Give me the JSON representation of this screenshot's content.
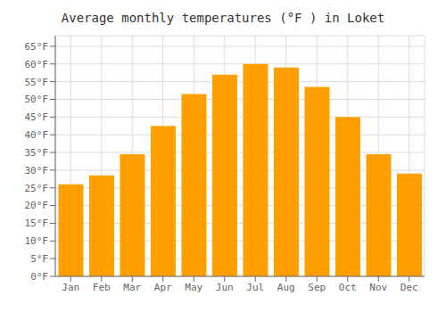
{
  "chart_data": {
    "type": "bar",
    "title": "Average monthly temperatures (°F ) in Loket",
    "categories": [
      "Jan",
      "Feb",
      "Mar",
      "Apr",
      "May",
      "Jun",
      "Jul",
      "Aug",
      "Sep",
      "Oct",
      "Nov",
      "Dec"
    ],
    "values": [
      26,
      28.5,
      34.5,
      42.5,
      51.5,
      57,
      60,
      59,
      53.5,
      45,
      34.5,
      29
    ],
    "color": "#FFA000",
    "ylim": [
      0,
      68
    ],
    "yticks": [
      {
        "value": 0,
        "label": "0°F"
      },
      {
        "value": 5,
        "label": "5°F"
      },
      {
        "value": 10,
        "label": "10°F"
      },
      {
        "value": 15,
        "label": "15°F"
      },
      {
        "value": 20,
        "label": "20°F"
      },
      {
        "value": 25,
        "label": "25°F"
      },
      {
        "value": 30,
        "label": "30°F"
      },
      {
        "value": 35,
        "label": "35°F"
      },
      {
        "value": 40,
        "label": "40°F"
      },
      {
        "value": 45,
        "label": "45°F"
      },
      {
        "value": 50,
        "label": "50°F"
      },
      {
        "value": 55,
        "label": "55°F"
      },
      {
        "value": 60,
        "label": "60°F"
      },
      {
        "value": 65,
        "label": "65°F"
      }
    ],
    "grid": true
  }
}
